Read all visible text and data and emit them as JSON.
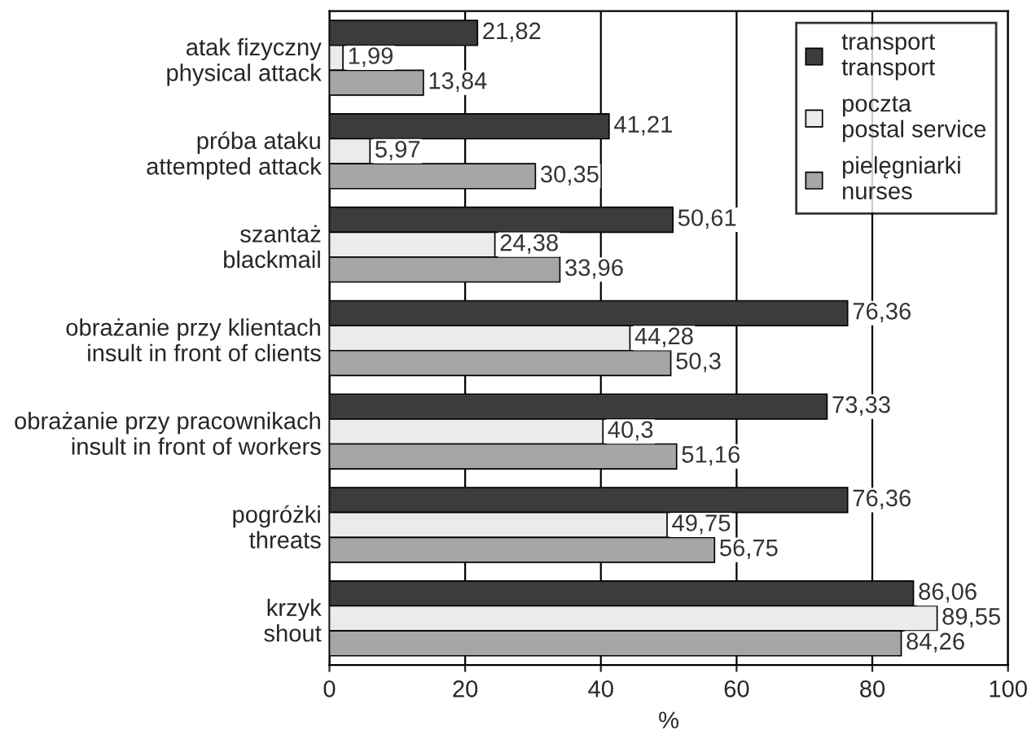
{
  "chart_data": {
    "type": "bar",
    "orientation": "horizontal",
    "xlabel": "%",
    "categories": [
      "atak fizyczny\nphysical attack",
      "próba ataku\nattempted attack",
      "szantaż\nblackmail",
      "obrażanie przy klientach\ninsult in front of clients",
      "obrażanie przy pracownikach\ninsult in front of workers",
      "pogróżki\nthreats",
      "krzyk\nshout"
    ],
    "series": [
      {
        "name": "transport\ntransport",
        "color": "#3c3c3c",
        "values": [
          21.82,
          41.21,
          50.61,
          76.36,
          73.33,
          76.36,
          86.06
        ],
        "value_labels": [
          "21,82",
          "41,21",
          "50,61",
          "76,36",
          "73,33",
          "76,36",
          "86,06"
        ]
      },
      {
        "name": "poczta\npostal service",
        "color": "#ebebeb",
        "values": [
          1.99,
          5.97,
          24.38,
          44.28,
          40.3,
          49.75,
          89.55
        ],
        "value_labels": [
          "1,99",
          "5,97",
          "24,38",
          "44,28",
          "40,3",
          "49,75",
          "89,55"
        ]
      },
      {
        "name": "pielęgniarki\nnurses",
        "color": "#a6a6a6",
        "values": [
          13.84,
          30.35,
          33.96,
          50.3,
          51.16,
          56.75,
          84.26
        ],
        "value_labels": [
          "13,84",
          "30,35",
          "33,96",
          "50,3",
          "51,16",
          "56,75",
          "84,26"
        ]
      }
    ],
    "xlim": [
      0,
      100
    ],
    "xticks": [
      0,
      20,
      40,
      60,
      80,
      100
    ],
    "grid": "x",
    "legend": "top right"
  }
}
